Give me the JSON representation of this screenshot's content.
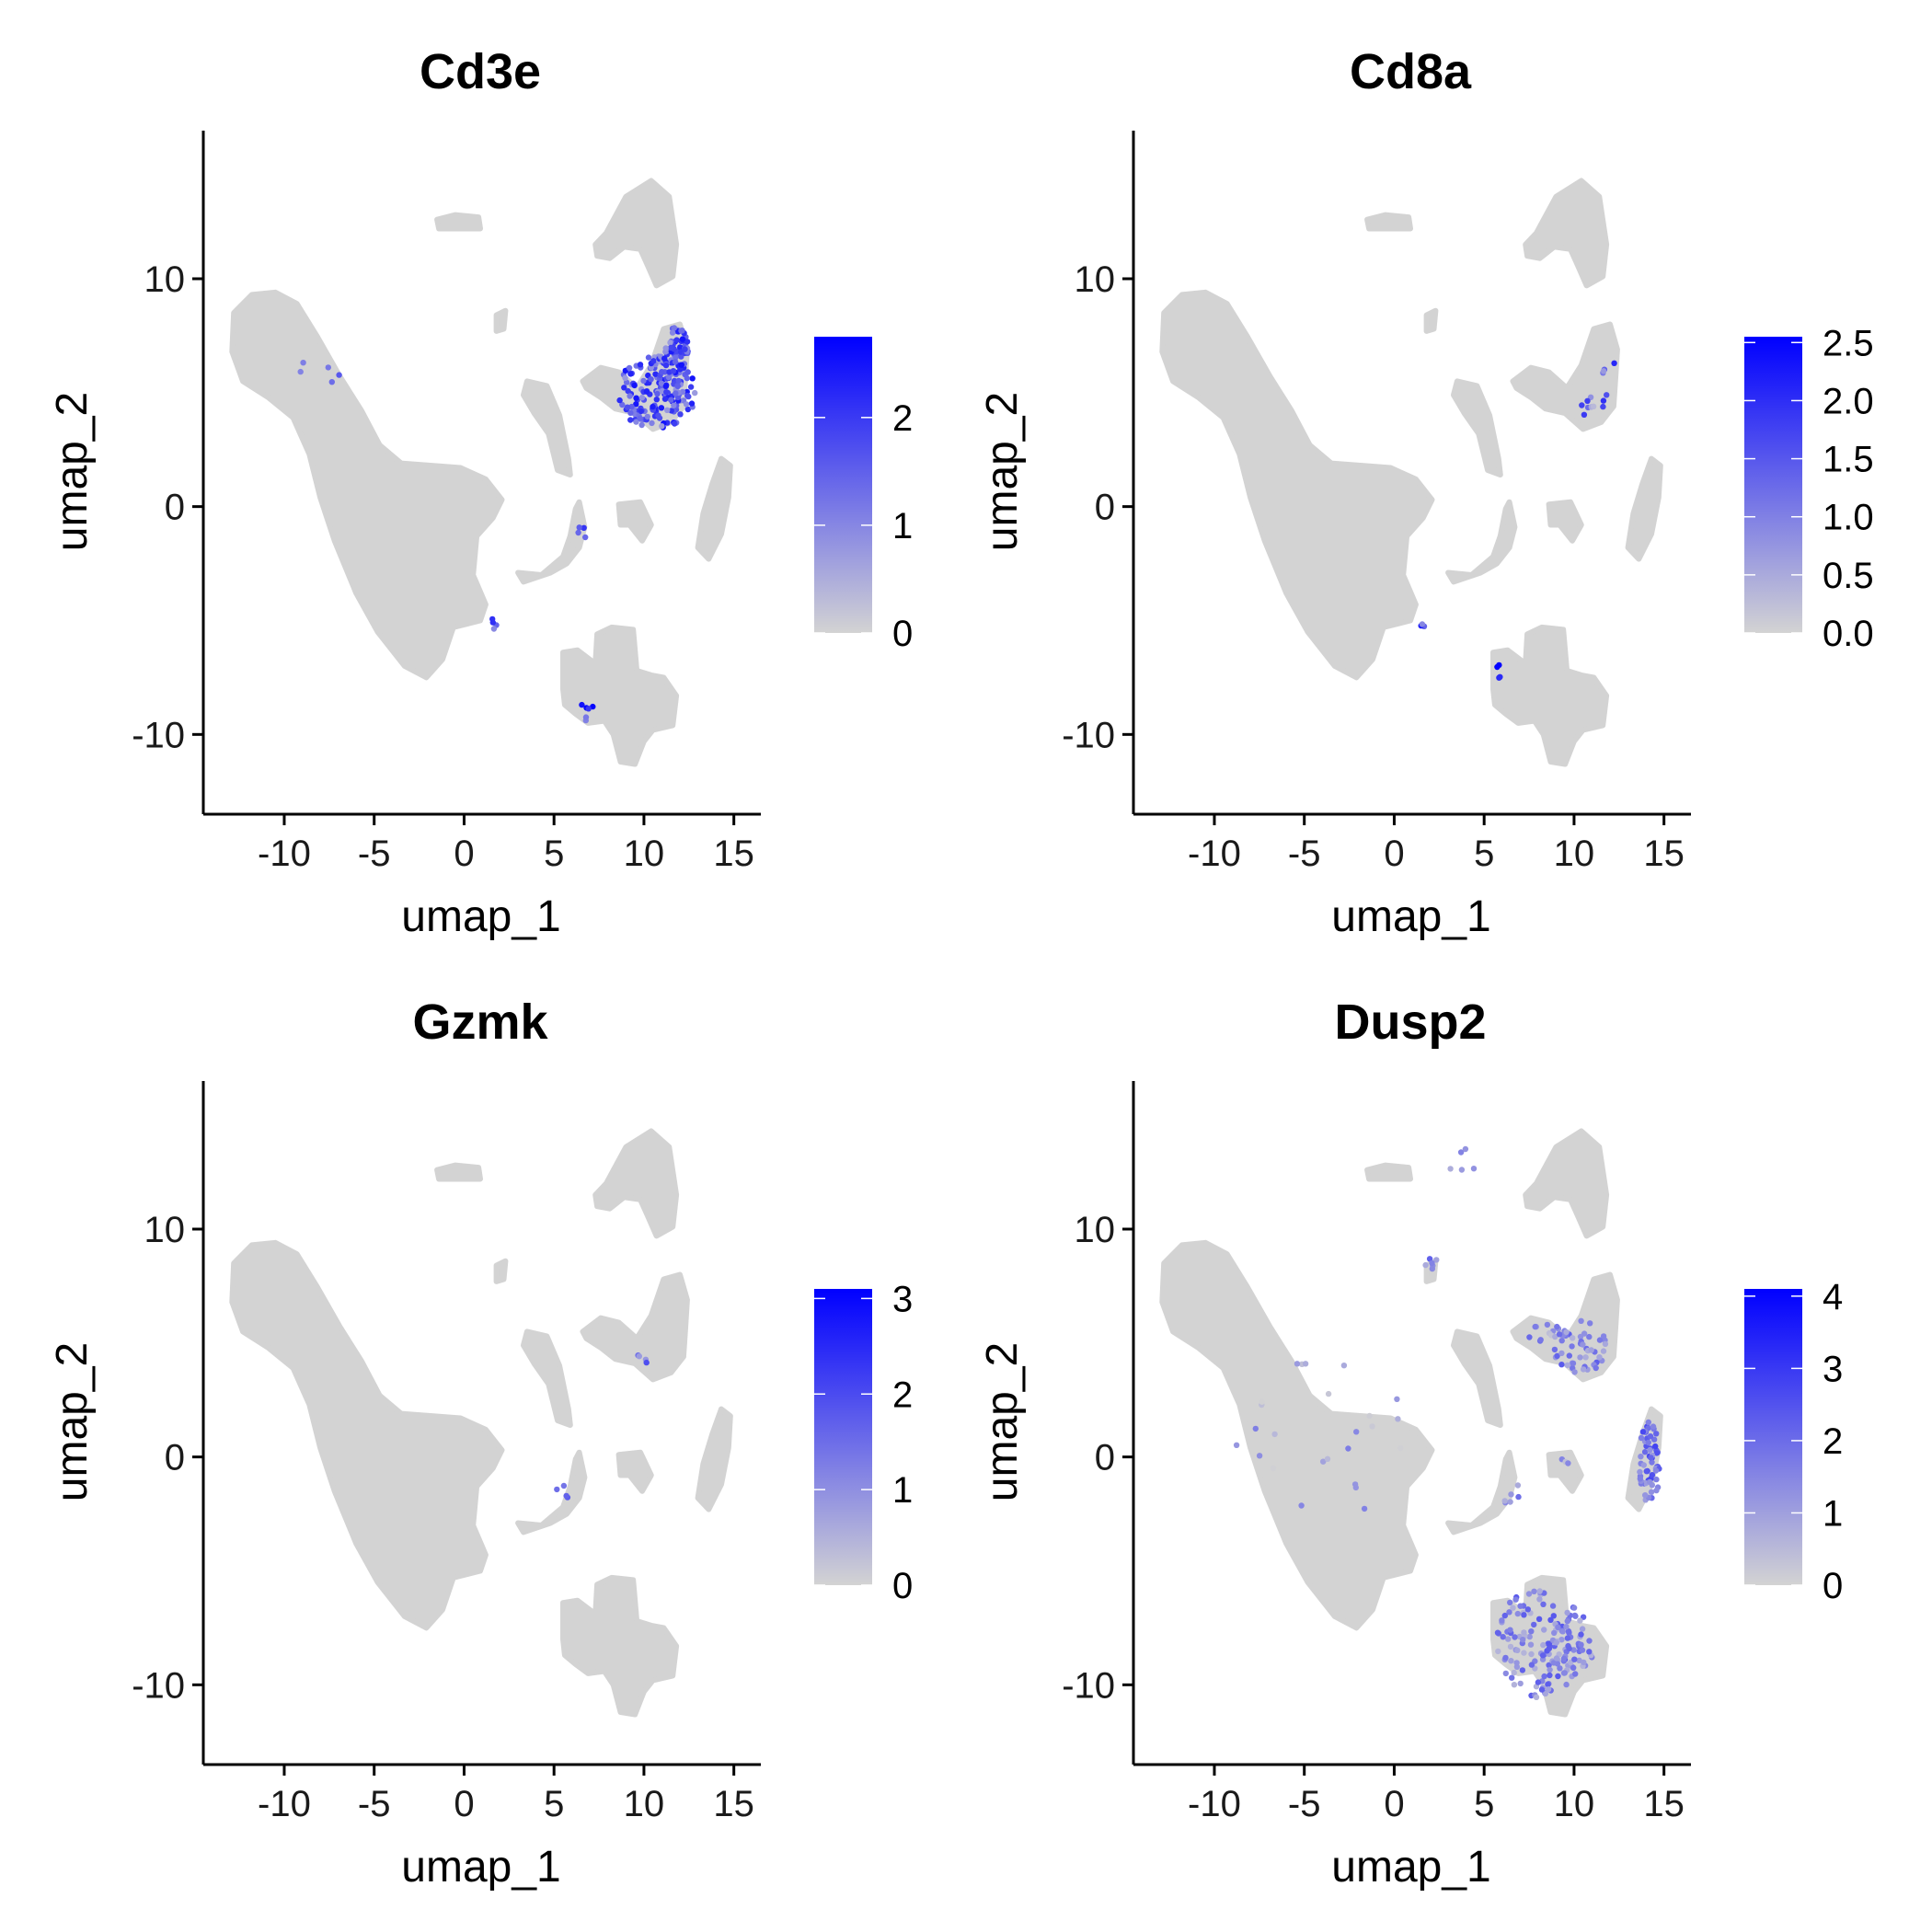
{
  "colors": {
    "low": "#d3d3d3",
    "high": "#0000ff",
    "axis": "#000000"
  },
  "chart_data": [
    {
      "type": "scatter",
      "title": "Cd3e",
      "xlabel": "umap_1",
      "ylabel": "umap_2",
      "xlim": [
        -14.5,
        16.5
      ],
      "ylim": [
        -13.5,
        16.5
      ],
      "xticks": [
        -10,
        -5,
        0,
        5,
        10,
        15
      ],
      "xtick_labels": [
        "-10",
        "-5",
        "0",
        "5",
        "10",
        "15"
      ],
      "yticks": [
        -10,
        0,
        10
      ],
      "ytick_labels": [
        "-10",
        "0",
        "10"
      ],
      "colorbar": {
        "min": 0,
        "max": 2.75,
        "ticks": [
          0,
          1,
          2
        ],
        "tick_labels": [
          "0",
          "1",
          "2"
        ]
      },
      "expressing_clusters": [
        {
          "cx": 10.7,
          "cy": 5.0,
          "rx": 2.2,
          "ry": 1.6,
          "n": 170,
          "mean": 1.6
        },
        {
          "cx": 11.8,
          "cy": 6.8,
          "rx": 0.7,
          "ry": 1.1,
          "n": 70,
          "mean": 1.6
        },
        {
          "cx": 6.9,
          "cy": -8.9,
          "rx": 0.4,
          "ry": 0.6,
          "n": 6,
          "mean": 1.8
        },
        {
          "cx": 1.5,
          "cy": -5.2,
          "rx": 0.4,
          "ry": 0.3,
          "n": 4,
          "mean": 1.6
        },
        {
          "cx": 6.5,
          "cy": -1.3,
          "rx": 0.5,
          "ry": 0.6,
          "n": 4,
          "mean": 1.4
        },
        {
          "cx": -8.0,
          "cy": 6.0,
          "rx": 1.6,
          "ry": 0.7,
          "n": 5,
          "mean": 1.5
        }
      ]
    },
    {
      "type": "scatter",
      "title": "Cd8a",
      "xlabel": "umap_1",
      "ylabel": "umap_2",
      "xlim": [
        -14.5,
        16.5
      ],
      "ylim": [
        -13.5,
        16.5
      ],
      "xticks": [
        -10,
        -5,
        0,
        5,
        10,
        15
      ],
      "xtick_labels": [
        "-10",
        "-5",
        "0",
        "5",
        "10",
        "15"
      ],
      "yticks": [
        -10,
        0,
        10
      ],
      "ytick_labels": [
        "-10",
        "0",
        "10"
      ],
      "colorbar": {
        "min": 0,
        "max": 2.55,
        "ticks": [
          0,
          0.5,
          1.0,
          1.5,
          2.0,
          2.5
        ],
        "tick_labels": [
          "0.0",
          "0.5",
          "1.0",
          "1.5",
          "2.0",
          "2.5"
        ]
      },
      "expressing_clusters": [
        {
          "cx": 11.2,
          "cy": 4.5,
          "rx": 0.8,
          "ry": 0.8,
          "n": 10,
          "mean": 1.2
        },
        {
          "cx": 12.0,
          "cy": 6.0,
          "rx": 0.4,
          "ry": 0.6,
          "n": 4,
          "mean": 1.5
        },
        {
          "cx": 5.7,
          "cy": -7.3,
          "rx": 0.4,
          "ry": 0.4,
          "n": 4,
          "mean": 2.3
        },
        {
          "cx": 1.6,
          "cy": -5.1,
          "rx": 0.3,
          "ry": 0.2,
          "n": 3,
          "mean": 1.5
        }
      ]
    },
    {
      "type": "scatter",
      "title": "Gzmk",
      "xlabel": "umap_1",
      "ylabel": "umap_2",
      "xlim": [
        -14.5,
        16.5
      ],
      "ylim": [
        -13.5,
        16.5
      ],
      "xticks": [
        -10,
        -5,
        0,
        5,
        10,
        15
      ],
      "xtick_labels": [
        "-10",
        "-5",
        "0",
        "5",
        "10",
        "15"
      ],
      "yticks": [
        -10,
        0,
        10
      ],
      "ytick_labels": [
        "-10",
        "0",
        "10"
      ],
      "colorbar": {
        "min": 0,
        "max": 3.1,
        "ticks": [
          0,
          1,
          2,
          3
        ],
        "tick_labels": [
          "0",
          "1",
          "2",
          "3"
        ]
      },
      "expressing_clusters": [
        {
          "cx": 10.2,
          "cy": 4.4,
          "rx": 0.8,
          "ry": 0.5,
          "n": 4,
          "mean": 1.2
        },
        {
          "cx": 5.6,
          "cy": -1.6,
          "rx": 0.5,
          "ry": 0.4,
          "n": 4,
          "mean": 1.0
        }
      ]
    },
    {
      "type": "scatter",
      "title": "Dusp2",
      "xlabel": "umap_1",
      "ylabel": "umap_2",
      "xlim": [
        -14.5,
        16.5
      ],
      "ylim": [
        -13.5,
        16.5
      ],
      "xticks": [
        -10,
        -5,
        0,
        5,
        10,
        15
      ],
      "xtick_labels": [
        "-10",
        "-5",
        "0",
        "5",
        "10",
        "15"
      ],
      "yticks": [
        -10,
        0,
        10
      ],
      "ytick_labels": [
        "-10",
        "0",
        "10"
      ],
      "colorbar": {
        "min": 0,
        "max": 4.1,
        "ticks": [
          0,
          1,
          2,
          3,
          4
        ],
        "tick_labels": [
          "0",
          "1",
          "2",
          "3",
          "4"
        ]
      },
      "expressing_clusters": [
        {
          "cx": 8.0,
          "cy": -8.2,
          "rx": 2.4,
          "ry": 2.4,
          "n": 120,
          "mean": 1.5
        },
        {
          "cx": 9.8,
          "cy": -8.0,
          "rx": 1.4,
          "ry": 1.6,
          "n": 50,
          "mean": 1.5
        },
        {
          "cx": 14.2,
          "cy": -0.3,
          "rx": 0.6,
          "ry": 1.9,
          "n": 60,
          "mean": 1.9
        },
        {
          "cx": 10.3,
          "cy": 4.8,
          "rx": 1.5,
          "ry": 1.2,
          "n": 45,
          "mean": 1.5
        },
        {
          "cx": 8.5,
          "cy": 5.5,
          "rx": 1.2,
          "ry": 0.5,
          "n": 15,
          "mean": 1.2
        },
        {
          "cx": 2.0,
          "cy": 8.5,
          "rx": 0.4,
          "ry": 0.4,
          "n": 6,
          "mean": 1.6
        },
        {
          "cx": 6.5,
          "cy": -1.5,
          "rx": 0.6,
          "ry": 0.6,
          "n": 6,
          "mean": 1.2
        },
        {
          "cx": -4.0,
          "cy": 1.0,
          "rx": 5.0,
          "ry": 4.0,
          "n": 25,
          "mean": 0.8
        },
        {
          "cx": 4.0,
          "cy": 13.0,
          "rx": 1.0,
          "ry": 1.0,
          "n": 5,
          "mean": 1.0
        },
        {
          "cx": 9.5,
          "cy": 0.0,
          "rx": 0.4,
          "ry": 0.5,
          "n": 3,
          "mean": 1.0
        }
      ]
    }
  ]
}
